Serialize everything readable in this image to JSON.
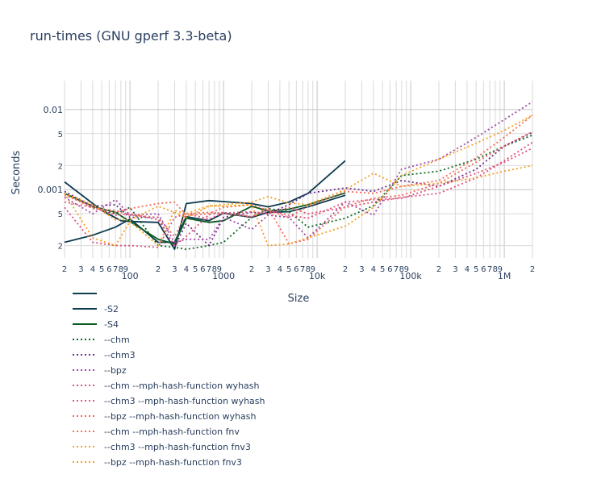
{
  "chart_data": {
    "type": "line",
    "title": "run-times (GNU gperf 3.3-beta)",
    "xlabel": "Size",
    "ylabel": "Seconds",
    "x_scale": "log",
    "y_scale": "log",
    "xlim": [
      20,
      2000000
    ],
    "ylim": [
      0.00014,
      0.023
    ],
    "grid": true,
    "legend_position": "bottom-left",
    "x_major_ticks": [
      {
        "value": 100,
        "label": "100"
      },
      {
        "value": 1000,
        "label": "1000"
      },
      {
        "value": 10000,
        "label": "10k"
      },
      {
        "value": 100000,
        "label": "100k"
      },
      {
        "value": 1000000,
        "label": "1M"
      }
    ],
    "x_minor_ticks": [
      {
        "value": 20,
        "label": "2"
      },
      {
        "value": 30,
        "label": "3"
      },
      {
        "value": 40,
        "label": "4"
      },
      {
        "value": 50,
        "label": "5"
      },
      {
        "value": 60,
        "label": "6"
      },
      {
        "value": 70,
        "label": "7"
      },
      {
        "value": 80,
        "label": "8"
      },
      {
        "value": 90,
        "label": "9"
      },
      {
        "value": 200,
        "label": "2"
      },
      {
        "value": 300,
        "label": "3"
      },
      {
        "value": 400,
        "label": "4"
      },
      {
        "value": 500,
        "label": "5"
      },
      {
        "value": 600,
        "label": "6"
      },
      {
        "value": 700,
        "label": "7"
      },
      {
        "value": 800,
        "label": "8"
      },
      {
        "value": 900,
        "label": "9"
      },
      {
        "value": 2000,
        "label": "2"
      },
      {
        "value": 3000,
        "label": "3"
      },
      {
        "value": 4000,
        "label": "4"
      },
      {
        "value": 5000,
        "label": "5"
      },
      {
        "value": 6000,
        "label": "6"
      },
      {
        "value": 7000,
        "label": "7"
      },
      {
        "value": 8000,
        "label": "8"
      },
      {
        "value": 9000,
        "label": "9"
      },
      {
        "value": 20000,
        "label": "2"
      },
      {
        "value": 30000,
        "label": "3"
      },
      {
        "value": 40000,
        "label": "4"
      },
      {
        "value": 50000,
        "label": "5"
      },
      {
        "value": 60000,
        "label": "6"
      },
      {
        "value": 70000,
        "label": "7"
      },
      {
        "value": 80000,
        "label": "8"
      },
      {
        "value": 90000,
        "label": "9"
      },
      {
        "value": 200000,
        "label": "2"
      },
      {
        "value": 300000,
        "label": "3"
      },
      {
        "value": 400000,
        "label": "4"
      },
      {
        "value": 500000,
        "label": "5"
      },
      {
        "value": 600000,
        "label": "6"
      },
      {
        "value": 700000,
        "label": "7"
      },
      {
        "value": 800000,
        "label": "8"
      },
      {
        "value": 900000,
        "label": "9"
      },
      {
        "value": 2000000,
        "label": "2"
      }
    ],
    "y_major_ticks": [
      {
        "value": 0.001,
        "label": "0.001"
      },
      {
        "value": 0.01,
        "label": "0.01"
      }
    ],
    "y_minor_ticks": [
      {
        "value": 0.0002,
        "label": "2"
      },
      {
        "value": 0.0005,
        "label": "5"
      },
      {
        "value": 0.002,
        "label": "2"
      },
      {
        "value": 0.005,
        "label": "5"
      }
    ],
    "series": [
      {
        "name": "",
        "color": "#0d3b4f",
        "dash": "solid",
        "x": [
          20,
          40,
          70,
          100,
          200,
          300,
          400,
          700,
          1000,
          2000,
          3000,
          5000,
          8000,
          20000
        ],
        "y": [
          0.00022,
          0.00027,
          0.00034,
          0.00043,
          0.00022,
          0.00022,
          0.00046,
          0.00041,
          0.00051,
          0.00045,
          0.00052,
          0.00053,
          0.00061,
          0.00085
        ]
      },
      {
        "name": "-S2",
        "color": "#0d3b4f",
        "dash": "solid",
        "x": [
          20,
          50,
          80,
          100,
          200,
          300,
          400,
          700,
          1000,
          2000,
          3000,
          5000,
          8000,
          20000
        ],
        "y": [
          0.00125,
          0.00055,
          0.00041,
          0.0004,
          0.00039,
          0.00018,
          0.00067,
          0.00073,
          0.00071,
          0.00067,
          0.00061,
          0.0007,
          0.0009,
          0.0023
        ]
      },
      {
        "name": "-S4",
        "color": "#0a5a20",
        "dash": "solid",
        "x": [
          20,
          40,
          70,
          100,
          200,
          300,
          400,
          700,
          1000,
          2000,
          3000,
          5000,
          8000,
          20000
        ],
        "y": [
          0.0009,
          0.00062,
          0.00052,
          0.0004,
          0.00024,
          0.00021,
          0.00044,
          0.00039,
          0.00041,
          0.00062,
          0.00054,
          0.00057,
          0.00065,
          0.00091
        ]
      },
      {
        "name": "--chm",
        "color": "#0b6623",
        "dash": "dot",
        "x": [
          20,
          40,
          70,
          100,
          200,
          300,
          400,
          700,
          1000,
          2000,
          3000,
          5000,
          8000,
          20000,
          40000,
          80000,
          200000,
          500000,
          1000000,
          2000000
        ],
        "y": [
          0.0009,
          0.0006,
          0.0005,
          0.0006,
          0.0002,
          0.00019,
          0.00018,
          0.0002,
          0.00022,
          0.00045,
          0.00058,
          0.00053,
          0.00034,
          0.00044,
          0.00063,
          0.0015,
          0.0017,
          0.0024,
          0.0035,
          0.0048
        ]
      },
      {
        "name": "--chm3",
        "color": "#6a2c8c",
        "dash": "dot",
        "x": [
          20,
          40,
          70,
          100,
          200,
          300,
          400,
          700,
          1000,
          2000,
          3000,
          5000,
          8000,
          20000,
          40000,
          80000,
          200000,
          500000,
          1000000,
          2000000
        ],
        "y": [
          0.00095,
          0.00062,
          0.00065,
          0.00045,
          0.00045,
          0.00019,
          0.00038,
          0.0002,
          0.00045,
          0.00052,
          0.0005,
          0.00065,
          0.0009,
          0.00105,
          0.00095,
          0.0013,
          0.0011,
          0.0018,
          0.0035,
          0.0052
        ]
      },
      {
        "name": "--bpz",
        "color": "#a04ba6",
        "dash": "dot",
        "x": [
          20,
          40,
          70,
          100,
          200,
          300,
          400,
          700,
          1000,
          2000,
          3000,
          5000,
          8000,
          20000,
          40000,
          80000,
          200000,
          500000,
          1000000,
          2000000
        ],
        "y": [
          0.0008,
          0.0005,
          0.00075,
          0.00048,
          0.0005,
          0.00022,
          0.00024,
          0.00024,
          0.00045,
          0.00032,
          0.00048,
          0.00045,
          0.00025,
          0.0007,
          0.00048,
          0.0018,
          0.0024,
          0.0045,
          0.0075,
          0.0125
        ]
      },
      {
        "name": "--chm --mph-hash-function wyhash",
        "color": "#e0507a",
        "dash": "dot",
        "x": [
          20,
          40,
          70,
          100,
          200,
          300,
          400,
          700,
          1000,
          2000,
          3000,
          5000,
          8000,
          20000,
          40000,
          80000,
          200000,
          500000,
          1000000,
          2000000
        ],
        "y": [
          0.0006,
          0.00022,
          0.0002,
          0.0002,
          0.00019,
          0.00045,
          0.0005,
          0.00043,
          0.00051,
          0.00053,
          0.0005,
          0.0006,
          0.0005,
          0.0006,
          0.0007,
          0.0008,
          0.0009,
          0.0014,
          0.0023,
          0.0039
        ]
      },
      {
        "name": "--chm3 --mph-hash-function wyhash",
        "color": "#e0507a",
        "dash": "dot",
        "x": [
          20,
          40,
          70,
          100,
          200,
          300,
          400,
          700,
          1000,
          2000,
          3000,
          5000,
          8000,
          20000,
          40000,
          80000,
          200000,
          500000,
          1000000,
          2000000
        ],
        "y": [
          0.0007,
          0.0006,
          0.00048,
          0.0005,
          0.00042,
          0.0002,
          0.00026,
          0.00049,
          0.00052,
          0.00046,
          0.00055,
          0.00048,
          0.00044,
          0.0007,
          0.00075,
          0.00078,
          0.0011,
          0.0016,
          0.0022,
          0.0033
        ]
      },
      {
        "name": "--bpz --mph-hash-function wyhash",
        "color": "#f06a5a",
        "dash": "dot",
        "x": [
          20,
          40,
          70,
          100,
          200,
          300,
          400,
          700,
          1000,
          2000,
          3000,
          5000,
          8000,
          20000,
          40000,
          80000,
          200000,
          500000,
          1000000,
          2000000
        ],
        "y": [
          0.0009,
          0.00058,
          0.00055,
          0.00048,
          0.00045,
          0.00026,
          0.0005,
          0.00052,
          0.0005,
          0.00046,
          0.0006,
          0.00021,
          0.00024,
          0.00062,
          0.00078,
          0.00085,
          0.0012,
          0.0022,
          0.0035,
          0.0053
        ]
      },
      {
        "name": "--chm --mph-hash-function fnv",
        "color": "#f26b5b",
        "dash": "dot",
        "x": [
          20,
          40,
          70,
          100,
          200,
          300,
          400,
          700,
          1000,
          2000,
          3000,
          5000,
          8000,
          20000,
          40000,
          80000,
          200000,
          500000,
          1000000,
          2000000
        ],
        "y": [
          0.00085,
          0.00062,
          0.00052,
          0.00058,
          0.00067,
          0.0007,
          0.00048,
          0.0005,
          0.0006,
          0.00065,
          0.00055,
          0.00045,
          0.00062,
          0.00095,
          0.0009,
          0.0011,
          0.0013,
          0.0025,
          0.0045,
          0.0085
        ]
      },
      {
        "name": "--chm3 --mph-hash-function fnv3",
        "color": "#f5a020",
        "dash": "dot",
        "x": [
          20,
          40,
          70,
          100,
          200,
          300,
          400,
          700,
          1000,
          2000,
          3000,
          5000,
          8000,
          20000,
          40000,
          80000,
          200000,
          500000,
          1000000,
          2000000
        ],
        "y": [
          0.0009,
          0.00065,
          0.00042,
          0.00042,
          0.00062,
          0.00052,
          0.00045,
          0.00062,
          0.00065,
          0.0007,
          0.00082,
          0.00068,
          0.00065,
          0.001,
          0.0016,
          0.0011,
          0.0012,
          0.0014,
          0.0017,
          0.002
        ]
      },
      {
        "name": "--bpz --mph-hash-function fnv3",
        "color": "#f5a020",
        "dash": "dot",
        "x": [
          20,
          40,
          70,
          100,
          200,
          300,
          400,
          700,
          1000,
          2000,
          3000,
          5000,
          8000,
          20000,
          40000,
          80000,
          200000,
          500000,
          1000000,
          2000000
        ],
        "y": [
          0.0009,
          0.00025,
          0.0002,
          0.0004,
          0.0002,
          0.00055,
          0.0005,
          0.00063,
          0.00062,
          0.00065,
          0.0002,
          0.00021,
          0.00025,
          0.00035,
          0.0006,
          0.0015,
          0.0024,
          0.0038,
          0.0055,
          0.0085
        ]
      }
    ]
  }
}
